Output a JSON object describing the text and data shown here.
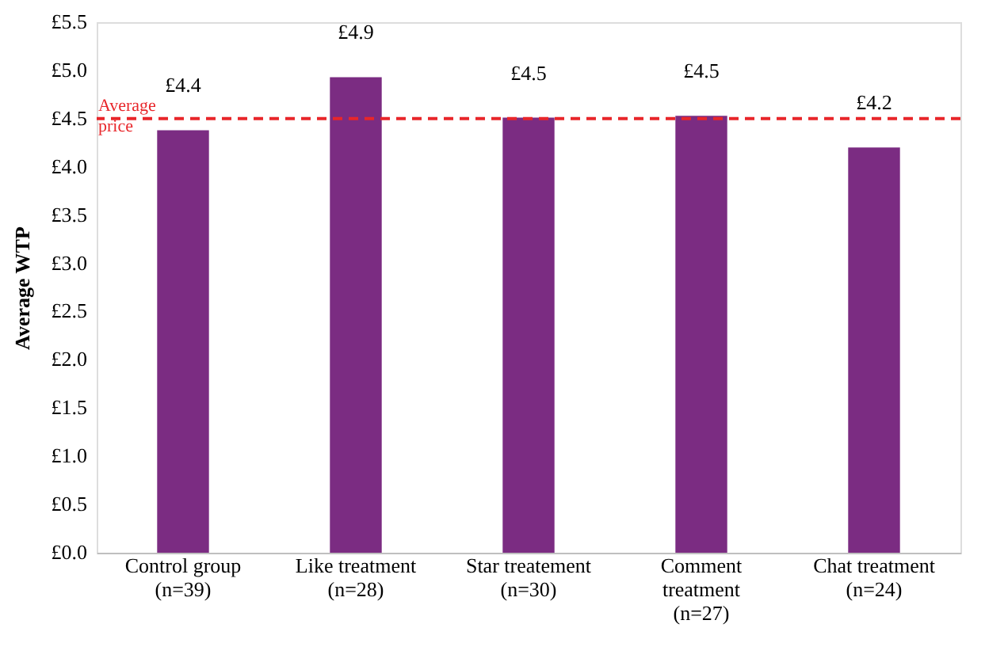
{
  "chart_data": {
    "type": "bar",
    "ylabel": "Average WTP",
    "categories": [
      "Control group\n(n=39)",
      "Like treatment\n(n=28)",
      "Star treatement\n(n=30)",
      "Comment\ntreatment\n(n=27)",
      "Chat treatment\n(n=24)"
    ],
    "values": [
      4.38,
      4.93,
      4.51,
      4.53,
      4.2
    ],
    "value_labels": [
      "£4.4",
      "£4.9",
      "£4.5",
      "£4.5",
      "£4.2"
    ],
    "color": "#7b2c82",
    "ylim": [
      0,
      5.5
    ],
    "yticks": [
      {
        "value": 0,
        "label": "£0.0"
      },
      {
        "value": 0.5,
        "label": "£0.5"
      },
      {
        "value": 1,
        "label": "£1.0"
      },
      {
        "value": 1.5,
        "label": "£1.5"
      },
      {
        "value": 2,
        "label": "£2.0"
      },
      {
        "value": 2.5,
        "label": "£2.5"
      },
      {
        "value": 3,
        "label": "£3.0"
      },
      {
        "value": 3.5,
        "label": "£3.5"
      },
      {
        "value": 4,
        "label": "£4.0"
      },
      {
        "value": 4.5,
        "label": "£4.5"
      },
      {
        "value": 5,
        "label": "£5.0"
      },
      {
        "value": 5.5,
        "label": "£5.5"
      }
    ],
    "ref_lines": [
      {
        "axis": "y",
        "value": 4.5,
        "label": "Average price",
        "color": "#e8262a",
        "line_style": "dashed"
      }
    ],
    "grid": false,
    "legend": false
  }
}
